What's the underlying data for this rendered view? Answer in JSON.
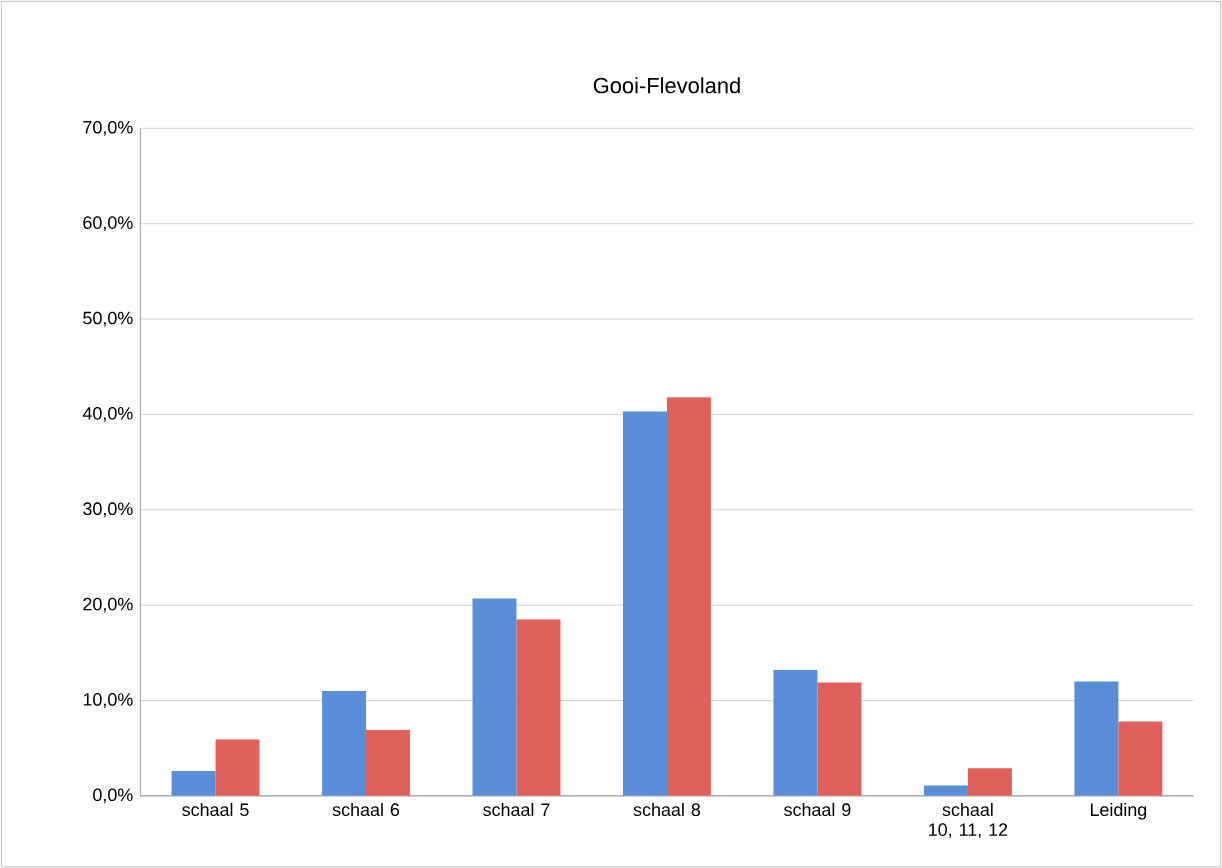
{
  "chart_data": {
    "type": "bar",
    "title": "Gooi-Flevoland",
    "categories": [
      "schaal 5",
      "schaal 6",
      "schaal 7",
      "schaal 8",
      "schaal 9",
      "schaal 10, 11, 12",
      "Leiding"
    ],
    "series": [
      {
        "color": "#5b8ed8",
        "values": [
          2.6,
          11.0,
          20.7,
          40.3,
          13.2,
          1.1,
          12.0
        ]
      },
      {
        "color": "#e0605c",
        "values": [
          5.9,
          6.9,
          18.5,
          41.8,
          11.9,
          2.9,
          7.8
        ]
      }
    ],
    "ylim": [
      0,
      70
    ],
    "yticks": [
      {
        "value": 0,
        "label": "0,0%"
      },
      {
        "value": 10,
        "label": "10,0%"
      },
      {
        "value": 20,
        "label": "20,0%"
      },
      {
        "value": 30,
        "label": "30,0%"
      },
      {
        "value": 40,
        "label": "40,0%"
      },
      {
        "value": 50,
        "label": "50,0%"
      },
      {
        "value": 60,
        "label": "60,0%"
      },
      {
        "value": 70,
        "label": "70,0%"
      }
    ],
    "grid": "y"
  }
}
